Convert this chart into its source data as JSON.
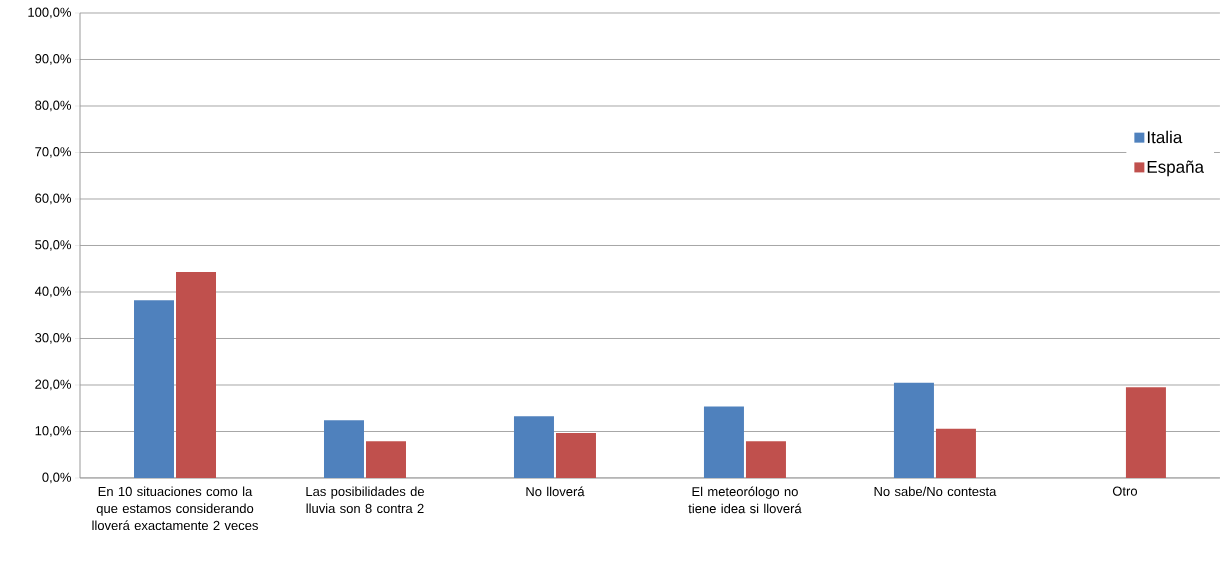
{
  "chart_data": {
    "type": "bar",
    "categories": [
      "En 10 situaciones como la que estamos considerando lloverá exactamente 2 veces",
      "Las posibilidades de lluvia son 8 contra 2",
      "No lloverá",
      "El meteorólogo no tiene idea si lloverá",
      "No sabe/No contesta",
      "Otro"
    ],
    "series": [
      {
        "name": "Italia",
        "color": "#4f81bd",
        "values": [
          38.2,
          12.4,
          13.3,
          15.4,
          20.5,
          null
        ]
      },
      {
        "name": "España",
        "color": "#c0504d",
        "values": [
          44.3,
          7.9,
          9.7,
          7.9,
          10.6,
          19.5
        ]
      }
    ],
    "ylim": [
      0,
      100
    ],
    "yticks": [
      {
        "value": 0,
        "label": "0,0%"
      },
      {
        "value": 10,
        "label": "10,0%"
      },
      {
        "value": 20,
        "label": "20,0%"
      },
      {
        "value": 30,
        "label": "30,0%"
      },
      {
        "value": 40,
        "label": "40,0%"
      },
      {
        "value": 50,
        "label": "50,0%"
      },
      {
        "value": 60,
        "label": "60,0%"
      },
      {
        "value": 70,
        "label": "70,0%"
      },
      {
        "value": 80,
        "label": "80,0%"
      },
      {
        "value": 90,
        "label": "90,0%"
      },
      {
        "value": 100,
        "label": "100,0%"
      }
    ],
    "grid": "y",
    "legend": "right"
  }
}
